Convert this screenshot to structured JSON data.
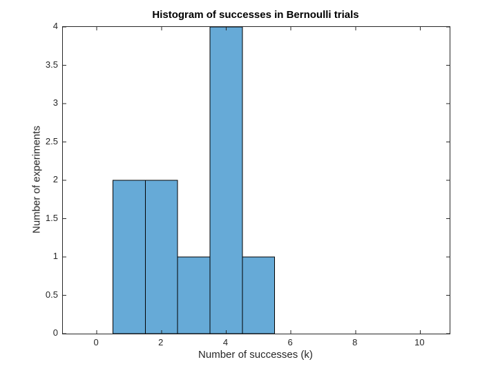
{
  "figure": {
    "background_color": "#ffffff"
  },
  "chart_data": {
    "type": "bar",
    "subtype": "histogram",
    "title": "Histogram of successes in Bernoulli trials",
    "xlabel": "Number of successes (k)",
    "ylabel": "Number of experiments",
    "bin_edges": [
      0.5,
      1.5,
      2.5,
      3.5,
      4.5,
      5.5
    ],
    "counts": [
      2,
      2,
      1,
      4,
      1
    ],
    "xlim": [
      -1.05,
      10.91
    ],
    "ylim": [
      0,
      4
    ],
    "xticks": [
      0,
      2,
      4,
      6,
      8,
      10
    ],
    "yticks": [
      0,
      0.5,
      1,
      1.5,
      2,
      2.5,
      3,
      3.5,
      4
    ],
    "grid": false,
    "box": true,
    "tick_direction": "in",
    "bar_face_color": "#66AAD7",
    "bar_edge_color": "#000000",
    "axis_color": "#262626",
    "title_color": "#000000"
  }
}
